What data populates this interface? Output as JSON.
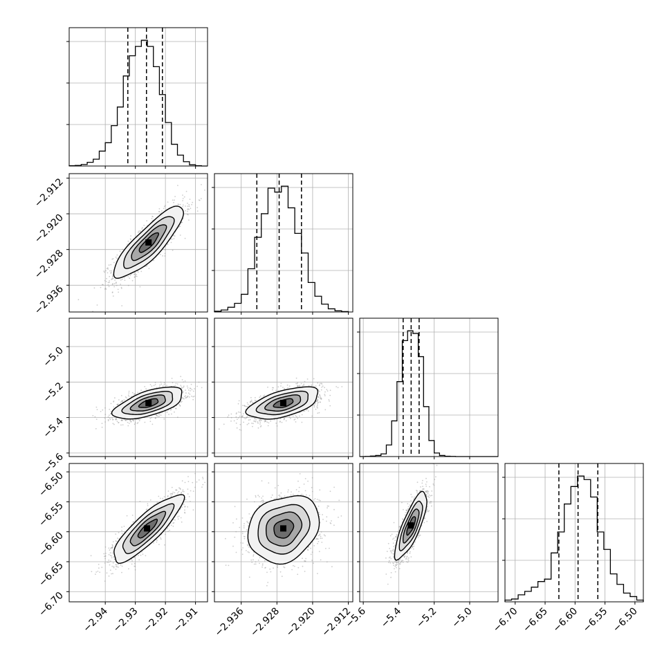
{
  "chart_data": {
    "type": "corner",
    "grid": true,
    "colors": {
      "line": "#000000",
      "grid": "#b0b0b0",
      "scatter": "#9a9a9a",
      "frame": "#000000"
    },
    "params": [
      {
        "range": [
          -2.952,
          -2.906
        ],
        "ticks": [
          -2.94,
          -2.93,
          -2.92,
          -2.91
        ],
        "tick_labels": [
          "−2.94",
          "−2.93",
          "−2.92",
          "−2.91"
        ]
      },
      {
        "range": [
          -2.942,
          -2.911
        ],
        "ticks": [
          -2.936,
          -2.928,
          -2.92,
          -2.912
        ],
        "tick_labels": [
          "−2.936",
          "−2.928",
          "−2.920",
          "−2.912"
        ]
      },
      {
        "range": [
          -5.62,
          -4.84
        ],
        "ticks": [
          -5.6,
          -5.4,
          -5.2,
          -5.0
        ],
        "tick_labels": [
          "−5.6",
          "−5.4",
          "−5.2",
          "−5.0"
        ]
      },
      {
        "range": [
          -6.717,
          -6.486
        ],
        "ticks": [
          -6.7,
          -6.65,
          -6.6,
          -6.55,
          -6.5
        ],
        "tick_labels": [
          "−6.70",
          "−6.65",
          "−6.60",
          "−6.55",
          "−6.50"
        ]
      }
    ],
    "histograms": [
      {
        "param": 0,
        "quantiles": [
          -2.9325,
          -2.9263,
          -2.921
        ],
        "edges": [
          -2.952,
          -2.95,
          -2.948,
          -2.946,
          -2.944,
          -2.942,
          -2.94,
          -2.938,
          -2.936,
          -2.934,
          -2.932,
          -2.93,
          -2.928,
          -2.926,
          -2.924,
          -2.922,
          -2.92,
          -2.918,
          -2.916,
          -2.914,
          -2.912,
          -2.91,
          -2.908,
          -2.906
        ],
        "counts": [
          1,
          2,
          5,
          12,
          22,
          48,
          75,
          130,
          190,
          290,
          355,
          385,
          405,
          385,
          320,
          230,
          140,
          70,
          35,
          14,
          4,
          1,
          0
        ]
      },
      {
        "param": 1,
        "quantiles": [
          -2.9325,
          -2.9275,
          -2.9225
        ],
        "edges": [
          -2.942,
          -2.9405,
          -2.939,
          -2.9375,
          -2.936,
          -2.9345,
          -2.933,
          -2.9315,
          -2.93,
          -2.9285,
          -2.927,
          -2.9255,
          -2.924,
          -2.9225,
          -2.921,
          -2.9195,
          -2.918,
          -2.9165,
          -2.915,
          -2.9135,
          -2.912
        ],
        "counts": [
          2,
          5,
          12,
          22,
          45,
          110,
          190,
          250,
          315,
          305,
          320,
          265,
          200,
          150,
          75,
          40,
          20,
          8,
          3,
          1
        ]
      },
      {
        "param": 2,
        "quantiles": [
          -5.375,
          -5.33,
          -5.285
        ],
        "edges": [
          -5.62,
          -5.59,
          -5.56,
          -5.53,
          -5.5,
          -5.47,
          -5.44,
          -5.41,
          -5.38,
          -5.35,
          -5.32,
          -5.29,
          -5.26,
          -5.23,
          -5.2,
          -5.17,
          -5.14,
          -5.11,
          -5.08,
          -5.05,
          -5.02,
          -4.99,
          -4.96,
          -4.93,
          -4.9,
          -4.87,
          -4.84
        ],
        "counts": [
          0,
          1,
          3,
          6,
          15,
          65,
          200,
          420,
          650,
          705,
          690,
          560,
          280,
          90,
          20,
          6,
          2,
          1,
          0,
          0,
          0,
          0,
          0,
          0,
          0,
          0
        ]
      },
      {
        "param": 3,
        "quantiles": [
          -6.627,
          -6.595,
          -6.562
        ],
        "edges": [
          -6.717,
          -6.706,
          -6.695,
          -6.684,
          -6.673,
          -6.662,
          -6.651,
          -6.64,
          -6.629,
          -6.618,
          -6.607,
          -6.596,
          -6.585,
          -6.574,
          -6.563,
          -6.552,
          -6.541,
          -6.53,
          -6.519,
          -6.508,
          -6.497,
          -6.486
        ],
        "counts": [
          5,
          8,
          20,
          30,
          42,
          58,
          65,
          140,
          200,
          280,
          330,
          360,
          350,
          300,
          200,
          150,
          80,
          50,
          25,
          15,
          5
        ]
      }
    ],
    "pairs": [
      {
        "x": 0,
        "y": 1,
        "center": [
          -2.9255,
          -2.9265
        ],
        "sd": [
          0.0058,
          0.004
        ],
        "rho": 0.85,
        "contours": [
          [
            0.48,
            0.76,
            1.05
          ],
          [
            1.1,
            0.95,
            0.88
          ]
        ]
      },
      {
        "x": 0,
        "y": 2,
        "center": [
          -2.9255,
          -5.32
        ],
        "sd": [
          0.0058,
          0.045
        ],
        "rho": 0.6
      },
      {
        "x": 1,
        "y": 2,
        "center": [
          -2.9265,
          -5.32
        ],
        "sd": [
          0.004,
          0.045
        ],
        "rho": 0.55
      },
      {
        "x": 0,
        "y": 3,
        "center": [
          -2.926,
          -6.595
        ],
        "sd": [
          0.0058,
          0.028
        ],
        "rho": 0.85
      },
      {
        "x": 1,
        "y": 3,
        "center": [
          -2.9265,
          -6.595
        ],
        "sd": [
          0.004,
          0.028
        ],
        "rho": 0.2
      },
      {
        "x": 2,
        "y": 3,
        "center": [
          -5.33,
          -6.59
        ],
        "sd": [
          0.045,
          0.028
        ],
        "rho": 0.8
      }
    ]
  }
}
